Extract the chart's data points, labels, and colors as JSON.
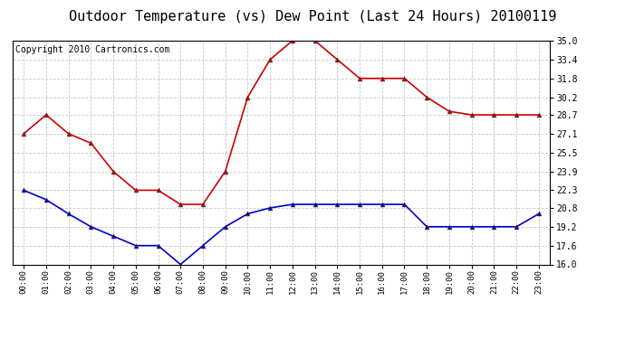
{
  "title": "Outdoor Temperature (vs) Dew Point (Last 24 Hours) 20100119",
  "copyright": "Copyright 2010 Cartronics.com",
  "hours": [
    "00:00",
    "01:00",
    "02:00",
    "03:00",
    "04:00",
    "05:00",
    "06:00",
    "07:00",
    "08:00",
    "09:00",
    "10:00",
    "11:00",
    "12:00",
    "13:00",
    "14:00",
    "15:00",
    "16:00",
    "17:00",
    "18:00",
    "19:00",
    "20:00",
    "21:00",
    "22:00",
    "23:00"
  ],
  "temp": [
    27.1,
    28.7,
    27.1,
    26.3,
    23.9,
    22.3,
    22.3,
    21.1,
    21.1,
    23.9,
    30.2,
    33.4,
    35.0,
    35.0,
    33.4,
    31.8,
    31.8,
    31.8,
    30.2,
    29.0,
    28.7,
    28.7,
    28.7,
    28.7
  ],
  "dew": [
    22.3,
    21.5,
    20.3,
    19.2,
    18.4,
    17.6,
    17.6,
    16.0,
    17.6,
    19.2,
    20.3,
    20.8,
    21.1,
    21.1,
    21.1,
    21.1,
    21.1,
    21.1,
    19.2,
    19.2,
    19.2,
    19.2,
    19.2,
    20.3
  ],
  "temp_color": "#cc0000",
  "dew_color": "#0000cc",
  "bg_color": "#ffffff",
  "plot_bg": "#ffffff",
  "grid_color": "#bbbbbb",
  "ylim": [
    16.0,
    35.0
  ],
  "yticks": [
    16.0,
    17.6,
    19.2,
    20.8,
    22.3,
    23.9,
    25.5,
    27.1,
    28.7,
    30.2,
    31.8,
    33.4,
    35.0
  ],
  "title_fontsize": 11,
  "copyright_fontsize": 7
}
